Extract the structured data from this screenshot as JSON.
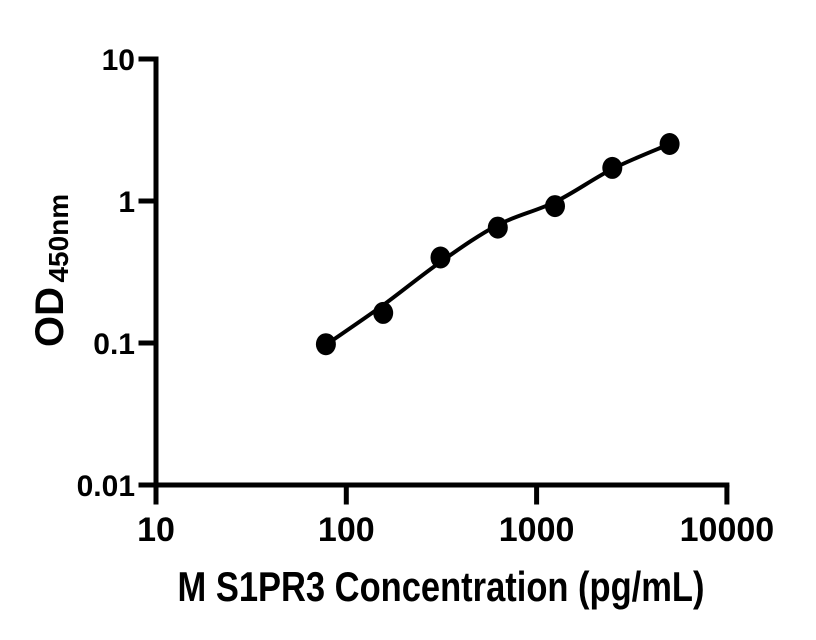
{
  "figure": {
    "background_color": "#ffffff",
    "ink_color": "#000000"
  },
  "chart_data": {
    "type": "scatter",
    "title": "",
    "xlabel": "M S1PR3 Concentration (pg/mL)",
    "ylabel_main": "OD",
    "ylabel_subscript": "450nm",
    "x_scale": "log10",
    "y_scale": "log10",
    "xlim": [
      10,
      10000
    ],
    "ylim": [
      0.01,
      10
    ],
    "grid": "off",
    "legend": "none",
    "x_ticks": [
      {
        "value": 10,
        "label": "10"
      },
      {
        "value": 100,
        "label": "100"
      },
      {
        "value": 1000,
        "label": "1000"
      },
      {
        "value": 10000,
        "label": "10000"
      }
    ],
    "y_ticks": [
      {
        "value": 10,
        "label": "10"
      },
      {
        "value": 1,
        "label": "1"
      },
      {
        "value": 0.1,
        "label": "0.1"
      },
      {
        "value": 0.01,
        "label": "0.01"
      }
    ],
    "series": [
      {
        "name": "standard-curve-points",
        "marker": "filled-circle",
        "color": "#000000",
        "points": [
          {
            "x": 78.1,
            "y": 0.098
          },
          {
            "x": 156.3,
            "y": 0.163
          },
          {
            "x": 312.5,
            "y": 0.4
          },
          {
            "x": 625,
            "y": 0.65
          },
          {
            "x": 1250,
            "y": 0.92
          },
          {
            "x": 2500,
            "y": 1.71
          },
          {
            "x": 5000,
            "y": 2.52
          }
        ]
      }
    ],
    "fit_curve": {
      "name": "4pl-fit-line",
      "color": "#000000",
      "points": [
        {
          "x": 78.1,
          "y": 0.097
        },
        {
          "x": 156.3,
          "y": 0.185
        },
        {
          "x": 312.5,
          "y": 0.372
        },
        {
          "x": 625,
          "y": 0.678
        },
        {
          "x": 1250,
          "y": 0.984
        },
        {
          "x": 2500,
          "y": 1.68
        },
        {
          "x": 5000,
          "y": 2.52
        }
      ]
    }
  }
}
